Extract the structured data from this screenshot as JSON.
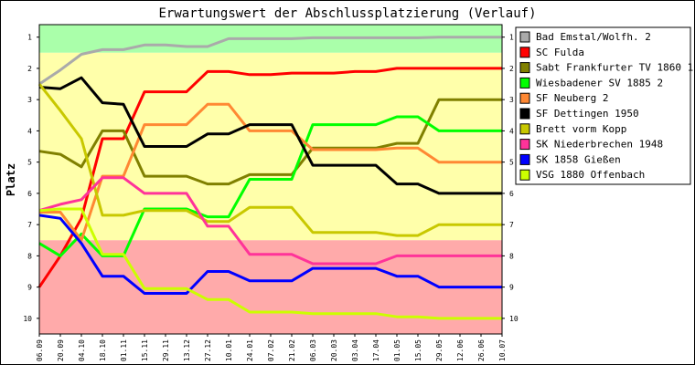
{
  "chart_data": {
    "type": "line",
    "title": "Erwartungswert der Abschlussplatzierung (Verlauf)",
    "ylabel": "Platz",
    "xlabel": "",
    "ylim": [
      0.6,
      10.5
    ],
    "y_inverted": true,
    "grid": false,
    "legend_position": "right",
    "yticks": [
      1,
      2,
      3,
      4,
      5,
      6,
      7,
      8,
      9,
      10
    ],
    "bands": [
      {
        "from": 0.6,
        "to": 1.5,
        "color": "#aaffaa"
      },
      {
        "from": 1.5,
        "to": 7.5,
        "color": "#ffffaa"
      },
      {
        "from": 7.5,
        "to": 10.5,
        "color": "#ffaaaa"
      }
    ],
    "x": [
      "06.09",
      "20.09",
      "04.10",
      "18.10",
      "01.11",
      "15.11",
      "29.11",
      "13.12",
      "27.12",
      "10.01",
      "24.01",
      "07.02",
      "21.02",
      "06.03",
      "20.03",
      "03.04",
      "17.04",
      "01.05",
      "15.05",
      "29.05",
      "12.06",
      "26.06",
      "10.07"
    ],
    "series": [
      {
        "name": "Bad Emstal/Wolfh. 2",
        "color": "#aaaaaa",
        "values": [
          2.5,
          2.05,
          1.55,
          1.4,
          1.4,
          1.25,
          1.25,
          1.3,
          1.3,
          1.05,
          1.05,
          1.05,
          1.05,
          1.02,
          1.02,
          1.02,
          1.02,
          1.02,
          1.02,
          1.0,
          1.0,
          1.0,
          1.0
        ]
      },
      {
        "name": "SC Fulda",
        "color": "#ff0000",
        "values": [
          9.0,
          8.0,
          6.8,
          4.25,
          4.25,
          2.75,
          2.75,
          2.75,
          2.1,
          2.1,
          2.2,
          2.2,
          2.15,
          2.15,
          2.15,
          2.1,
          2.1,
          2.0,
          2.0,
          2.0,
          2.0,
          2.0,
          2.0
        ]
      },
      {
        "name": "Sabt Frankfurter TV 1860 1",
        "color": "#808000",
        "values": [
          4.65,
          4.75,
          5.15,
          4.0,
          4.0,
          5.45,
          5.45,
          5.45,
          5.7,
          5.7,
          5.4,
          5.4,
          5.4,
          4.55,
          4.55,
          4.55,
          4.55,
          4.4,
          4.4,
          3.0,
          3.0,
          3.0,
          3.0
        ]
      },
      {
        "name": "Wiesbadener SV 1885 2",
        "color": "#00ff00",
        "values": [
          7.6,
          8.0,
          7.3,
          8.0,
          8.0,
          6.5,
          6.5,
          6.5,
          6.75,
          6.75,
          5.55,
          5.55,
          5.55,
          3.8,
          3.8,
          3.8,
          3.8,
          3.55,
          3.55,
          4.0,
          4.0,
          4.0,
          4.0
        ]
      },
      {
        "name": "SF Neuberg 2",
        "color": "#ff8833",
        "values": [
          6.6,
          6.6,
          7.5,
          5.45,
          5.45,
          3.8,
          3.8,
          3.8,
          3.15,
          3.15,
          4.0,
          4.0,
          4.0,
          4.6,
          4.6,
          4.6,
          4.6,
          4.55,
          4.55,
          5.0,
          5.0,
          5.0,
          5.0
        ]
      },
      {
        "name": "SF Dettingen 1950",
        "color": "#000000",
        "values": [
          2.6,
          2.65,
          2.3,
          3.1,
          3.15,
          4.5,
          4.5,
          4.5,
          4.1,
          4.1,
          3.8,
          3.8,
          3.8,
          5.1,
          5.1,
          5.1,
          5.1,
          5.7,
          5.7,
          6.0,
          6.0,
          6.0,
          6.0
        ]
      },
      {
        "name": "Brett vorm Kopp",
        "color": "#c8c800",
        "values": [
          2.5,
          3.35,
          4.25,
          6.7,
          6.7,
          6.55,
          6.55,
          6.55,
          6.9,
          6.9,
          6.45,
          6.45,
          6.45,
          7.25,
          7.25,
          7.25,
          7.25,
          7.35,
          7.35,
          7.0,
          7.0,
          7.0,
          7.0
        ]
      },
      {
        "name": "SK Niederbrechen 1948",
        "color": "#ff3399",
        "values": [
          6.55,
          6.35,
          6.2,
          5.5,
          5.5,
          6.0,
          6.0,
          6.0,
          7.05,
          7.05,
          7.95,
          7.95,
          7.95,
          8.25,
          8.25,
          8.25,
          8.25,
          8.0,
          8.0,
          8.0,
          8.0,
          8.0,
          8.0
        ]
      },
      {
        "name": "SK 1858 Gießen",
        "color": "#0000ff",
        "values": [
          6.7,
          6.8,
          7.6,
          8.65,
          8.65,
          9.2,
          9.2,
          9.2,
          8.5,
          8.5,
          8.8,
          8.8,
          8.8,
          8.4,
          8.4,
          8.4,
          8.4,
          8.65,
          8.65,
          9.0,
          9.0,
          9.0,
          9.0
        ]
      },
      {
        "name": "VSG 1880 Offenbach",
        "color": "#ccff00",
        "values": [
          6.55,
          6.5,
          6.5,
          7.95,
          7.95,
          9.05,
          9.05,
          9.05,
          9.4,
          9.4,
          9.8,
          9.8,
          9.8,
          9.85,
          9.85,
          9.85,
          9.85,
          9.95,
          9.95,
          10.0,
          10.0,
          10.0,
          10.0
        ]
      }
    ]
  }
}
